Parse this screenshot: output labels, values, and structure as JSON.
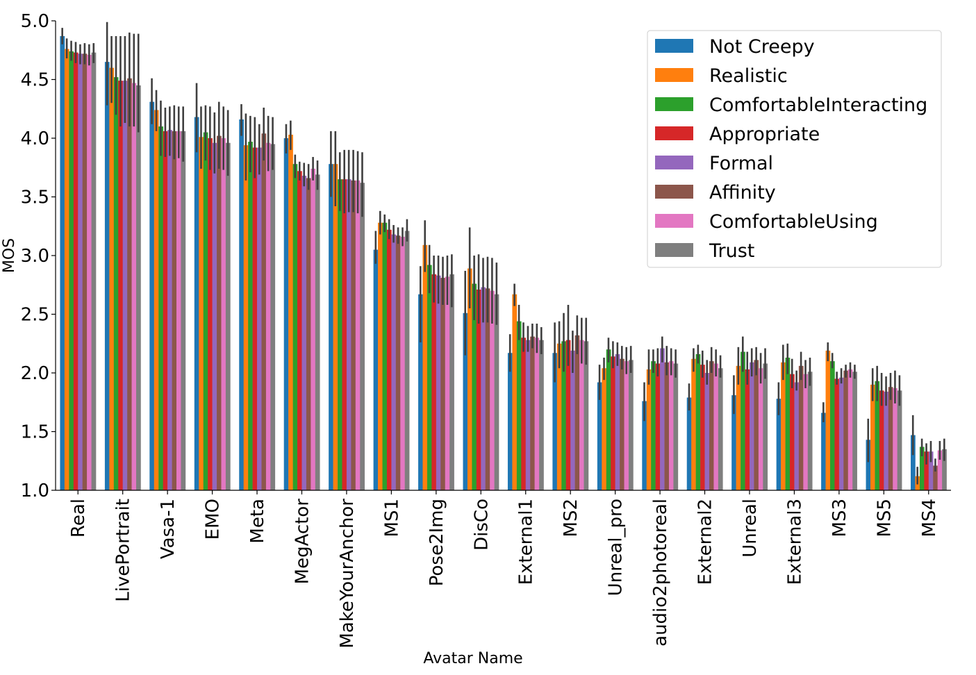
{
  "chart_data": {
    "type": "bar",
    "title": "",
    "xlabel": "Avatar Name",
    "ylabel": "MOS",
    "ylim": [
      1.0,
      5.0
    ],
    "yticks": [
      "1.0",
      "1.5",
      "2.0",
      "2.5",
      "3.0",
      "3.5",
      "4.0",
      "4.5",
      "5.0"
    ],
    "legend_position": "top-right",
    "categories": [
      "Real",
      "LivePortrait",
      "Vasa-1",
      "EMO",
      "Meta",
      "MegActor",
      "MakeYourAnchor",
      "MS1",
      "Pose2Img",
      "DisCo",
      "External1",
      "MS2",
      "Unreal_pro",
      "audio2photoreal",
      "External2",
      "Unreal",
      "External3",
      "MS3",
      "MS5",
      "MS4"
    ],
    "series": [
      {
        "name": "Not Creepy",
        "color": "#1f77b4",
        "values": [
          4.87,
          4.65,
          4.31,
          4.18,
          4.16,
          4.0,
          3.78,
          3.05,
          2.67,
          2.51,
          2.17,
          2.17,
          1.92,
          1.76,
          1.79,
          1.81,
          1.78,
          1.66,
          1.43,
          1.47
        ],
        "ci": [
          [
            4.8,
            4.94
          ],
          [
            4.28,
            4.99
          ],
          [
            4.12,
            4.51
          ],
          [
            3.88,
            4.47
          ],
          [
            4.02,
            4.29
          ],
          [
            3.87,
            4.12
          ],
          [
            3.5,
            4.06
          ],
          [
            2.93,
            3.21
          ],
          [
            2.26,
            2.91
          ],
          [
            2.15,
            2.87
          ],
          [
            2.01,
            2.33
          ],
          [
            1.92,
            2.43
          ],
          [
            1.77,
            2.07
          ],
          [
            1.59,
            1.92
          ],
          [
            1.68,
            1.91
          ],
          [
            1.65,
            1.98
          ],
          [
            1.64,
            1.92
          ],
          [
            1.58,
            1.75
          ],
          [
            1.24,
            1.61
          ],
          [
            1.3,
            1.64
          ]
        ]
      },
      {
        "name": "Realistic",
        "color": "#ff7f0e",
        "values": [
          4.76,
          4.6,
          4.24,
          4.01,
          3.94,
          4.03,
          3.78,
          3.28,
          3.09,
          2.89,
          2.67,
          2.25,
          2.04,
          2.03,
          2.12,
          2.06,
          2.09,
          2.19,
          1.9,
          1.12
        ],
        "ci": [
          [
            4.68,
            4.85
          ],
          [
            4.3,
            4.87
          ],
          [
            4.06,
            4.41
          ],
          [
            3.74,
            4.27
          ],
          [
            3.64,
            4.21
          ],
          [
            3.9,
            4.15
          ],
          [
            3.42,
            4.06
          ],
          [
            3.18,
            3.38
          ],
          [
            2.86,
            3.3
          ],
          [
            2.55,
            3.24
          ],
          [
            2.57,
            2.76
          ],
          [
            2.04,
            2.44
          ],
          [
            1.94,
            2.13
          ],
          [
            1.9,
            2.2
          ],
          [
            2.01,
            2.21
          ],
          [
            1.9,
            2.22
          ],
          [
            1.94,
            2.24
          ],
          [
            2.1,
            2.26
          ],
          [
            1.76,
            2.04
          ],
          [
            1.05,
            1.2
          ]
        ]
      },
      {
        "name": "ComfortableInteracting",
        "color": "#2ca02c",
        "values": [
          4.74,
          4.52,
          4.1,
          4.05,
          3.97,
          3.78,
          3.65,
          3.28,
          2.92,
          2.76,
          2.44,
          2.27,
          2.2,
          2.1,
          2.16,
          2.18,
          2.13,
          2.1,
          1.93,
          1.37
        ],
        "ci": [
          [
            4.66,
            4.83
          ],
          [
            4.2,
            4.87
          ],
          [
            3.85,
            4.32
          ],
          [
            3.81,
            4.28
          ],
          [
            3.71,
            4.19
          ],
          [
            3.66,
            3.86
          ],
          [
            3.38,
            3.88
          ],
          [
            3.2,
            3.35
          ],
          [
            2.68,
            3.09
          ],
          [
            2.45,
            3.0
          ],
          [
            2.28,
            2.58
          ],
          [
            2.01,
            2.51
          ],
          [
            2.09,
            2.3
          ],
          [
            2.0,
            2.2
          ],
          [
            2.08,
            2.24
          ],
          [
            2.01,
            2.31
          ],
          [
            1.99,
            2.25
          ],
          [
            2.04,
            2.17
          ],
          [
            1.76,
            2.06
          ],
          [
            1.29,
            1.44
          ]
        ]
      },
      {
        "name": "Appropriate",
        "color": "#d62728",
        "values": [
          4.73,
          4.49,
          4.06,
          4.0,
          3.92,
          3.72,
          3.65,
          3.22,
          2.84,
          2.71,
          2.3,
          2.28,
          2.14,
          2.08,
          2.07,
          2.03,
          1.99,
          1.95,
          1.85,
          1.33
        ],
        "ci": [
          [
            4.64,
            4.82
          ],
          [
            4.1,
            4.87
          ],
          [
            3.84,
            4.26
          ],
          [
            3.73,
            4.27
          ],
          [
            3.66,
            4.18
          ],
          [
            3.64,
            3.8
          ],
          [
            3.36,
            3.9
          ],
          [
            3.14,
            3.31
          ],
          [
            2.6,
            3.0
          ],
          [
            2.42,
            3.01
          ],
          [
            2.18,
            2.43
          ],
          [
            2.06,
            2.58
          ],
          [
            2.04,
            2.27
          ],
          [
            1.97,
            2.21
          ],
          [
            1.96,
            2.19
          ],
          [
            1.9,
            2.18
          ],
          [
            1.87,
            2.12
          ],
          [
            1.9,
            2.01
          ],
          [
            1.72,
            2.0
          ],
          [
            1.22,
            1.4
          ]
        ]
      },
      {
        "name": "Formal",
        "color": "#9467bd",
        "values": [
          4.72,
          4.49,
          4.07,
          3.96,
          3.92,
          3.68,
          3.65,
          3.18,
          2.83,
          2.73,
          2.28,
          2.19,
          2.16,
          2.21,
          2.0,
          2.09,
          1.92,
          1.96,
          1.84,
          1.33
        ],
        "ci": [
          [
            4.63,
            4.8
          ],
          [
            4.13,
            4.87
          ],
          [
            3.85,
            4.27
          ],
          [
            3.7,
            4.22
          ],
          [
            3.69,
            4.12
          ],
          [
            3.59,
            3.79
          ],
          [
            3.37,
            3.9
          ],
          [
            3.11,
            3.26
          ],
          [
            2.59,
            3.0
          ],
          [
            2.43,
            2.98
          ],
          [
            2.18,
            2.4
          ],
          [
            2.0,
            2.36
          ],
          [
            2.06,
            2.26
          ],
          [
            2.09,
            2.31
          ],
          [
            1.9,
            2.11
          ],
          [
            1.97,
            2.21
          ],
          [
            1.85,
            2.02
          ],
          [
            1.91,
            2.04
          ],
          [
            1.72,
            1.97
          ],
          [
            1.24,
            1.42
          ]
        ]
      },
      {
        "name": "Affinity",
        "color": "#8c564b",
        "values": [
          4.72,
          4.51,
          4.06,
          4.02,
          4.04,
          3.66,
          3.64,
          3.17,
          2.81,
          2.72,
          2.31,
          2.32,
          2.12,
          2.09,
          2.1,
          2.11,
          2.06,
          2.02,
          1.88,
          1.21
        ],
        "ci": [
          [
            4.63,
            4.81
          ],
          [
            4.1,
            4.9
          ],
          [
            3.82,
            4.28
          ],
          [
            3.74,
            4.31
          ],
          [
            3.81,
            4.26
          ],
          [
            3.56,
            3.78
          ],
          [
            3.37,
            3.9
          ],
          [
            3.1,
            3.24
          ],
          [
            2.58,
            2.99
          ],
          [
            2.43,
            2.99
          ],
          [
            2.21,
            2.42
          ],
          [
            2.16,
            2.49
          ],
          [
            2.03,
            2.23
          ],
          [
            1.98,
            2.23
          ],
          [
            2.0,
            2.22
          ],
          [
            1.98,
            2.22
          ],
          [
            1.94,
            2.18
          ],
          [
            1.96,
            2.07
          ],
          [
            1.77,
            2.0
          ],
          [
            1.16,
            1.27
          ]
        ]
      },
      {
        "name": "ComfortableUsing",
        "color": "#e377c2",
        "values": [
          4.71,
          4.47,
          4.06,
          4.0,
          3.96,
          3.74,
          3.64,
          3.16,
          2.82,
          2.7,
          2.3,
          2.28,
          2.1,
          2.1,
          2.08,
          2.04,
          1.99,
          2.03,
          1.87,
          1.34
        ],
        "ci": [
          [
            4.62,
            4.8
          ],
          [
            4.1,
            4.89
          ],
          [
            3.83,
            4.27
          ],
          [
            3.73,
            4.27
          ],
          [
            3.72,
            4.19
          ],
          [
            3.64,
            3.84
          ],
          [
            3.36,
            3.89
          ],
          [
            3.08,
            3.24
          ],
          [
            2.58,
            3.0
          ],
          [
            2.42,
            2.98
          ],
          [
            2.17,
            2.42
          ],
          [
            2.08,
            2.47
          ],
          [
            1.99,
            2.22
          ],
          [
            1.98,
            2.21
          ],
          [
            1.97,
            2.2
          ],
          [
            1.91,
            2.17
          ],
          [
            1.87,
            2.11
          ],
          [
            1.96,
            2.09
          ],
          [
            1.74,
            2.02
          ],
          [
            1.26,
            1.42
          ]
        ]
      },
      {
        "name": "Trust",
        "color": "#7f7f7f",
        "values": [
          4.73,
          4.45,
          4.06,
          3.96,
          3.95,
          3.69,
          3.62,
          3.21,
          2.84,
          2.67,
          2.28,
          2.27,
          2.11,
          2.08,
          2.04,
          2.08,
          2.01,
          2.01,
          1.85,
          1.35
        ],
        "ci": [
          [
            4.64,
            4.81
          ],
          [
            4.05,
            4.89
          ],
          [
            3.8,
            4.27
          ],
          [
            3.68,
            4.24
          ],
          [
            3.73,
            4.18
          ],
          [
            3.56,
            3.81
          ],
          [
            3.33,
            3.88
          ],
          [
            3.12,
            3.31
          ],
          [
            2.56,
            3.01
          ],
          [
            2.41,
            2.94
          ],
          [
            2.16,
            2.39
          ],
          [
            2.07,
            2.47
          ],
          [
            2.0,
            2.23
          ],
          [
            1.96,
            2.2
          ],
          [
            1.96,
            2.15
          ],
          [
            1.95,
            2.21
          ],
          [
            1.89,
            2.13
          ],
          [
            1.95,
            2.07
          ],
          [
            1.72,
            1.98
          ],
          [
            1.25,
            1.44
          ]
        ]
      }
    ]
  }
}
